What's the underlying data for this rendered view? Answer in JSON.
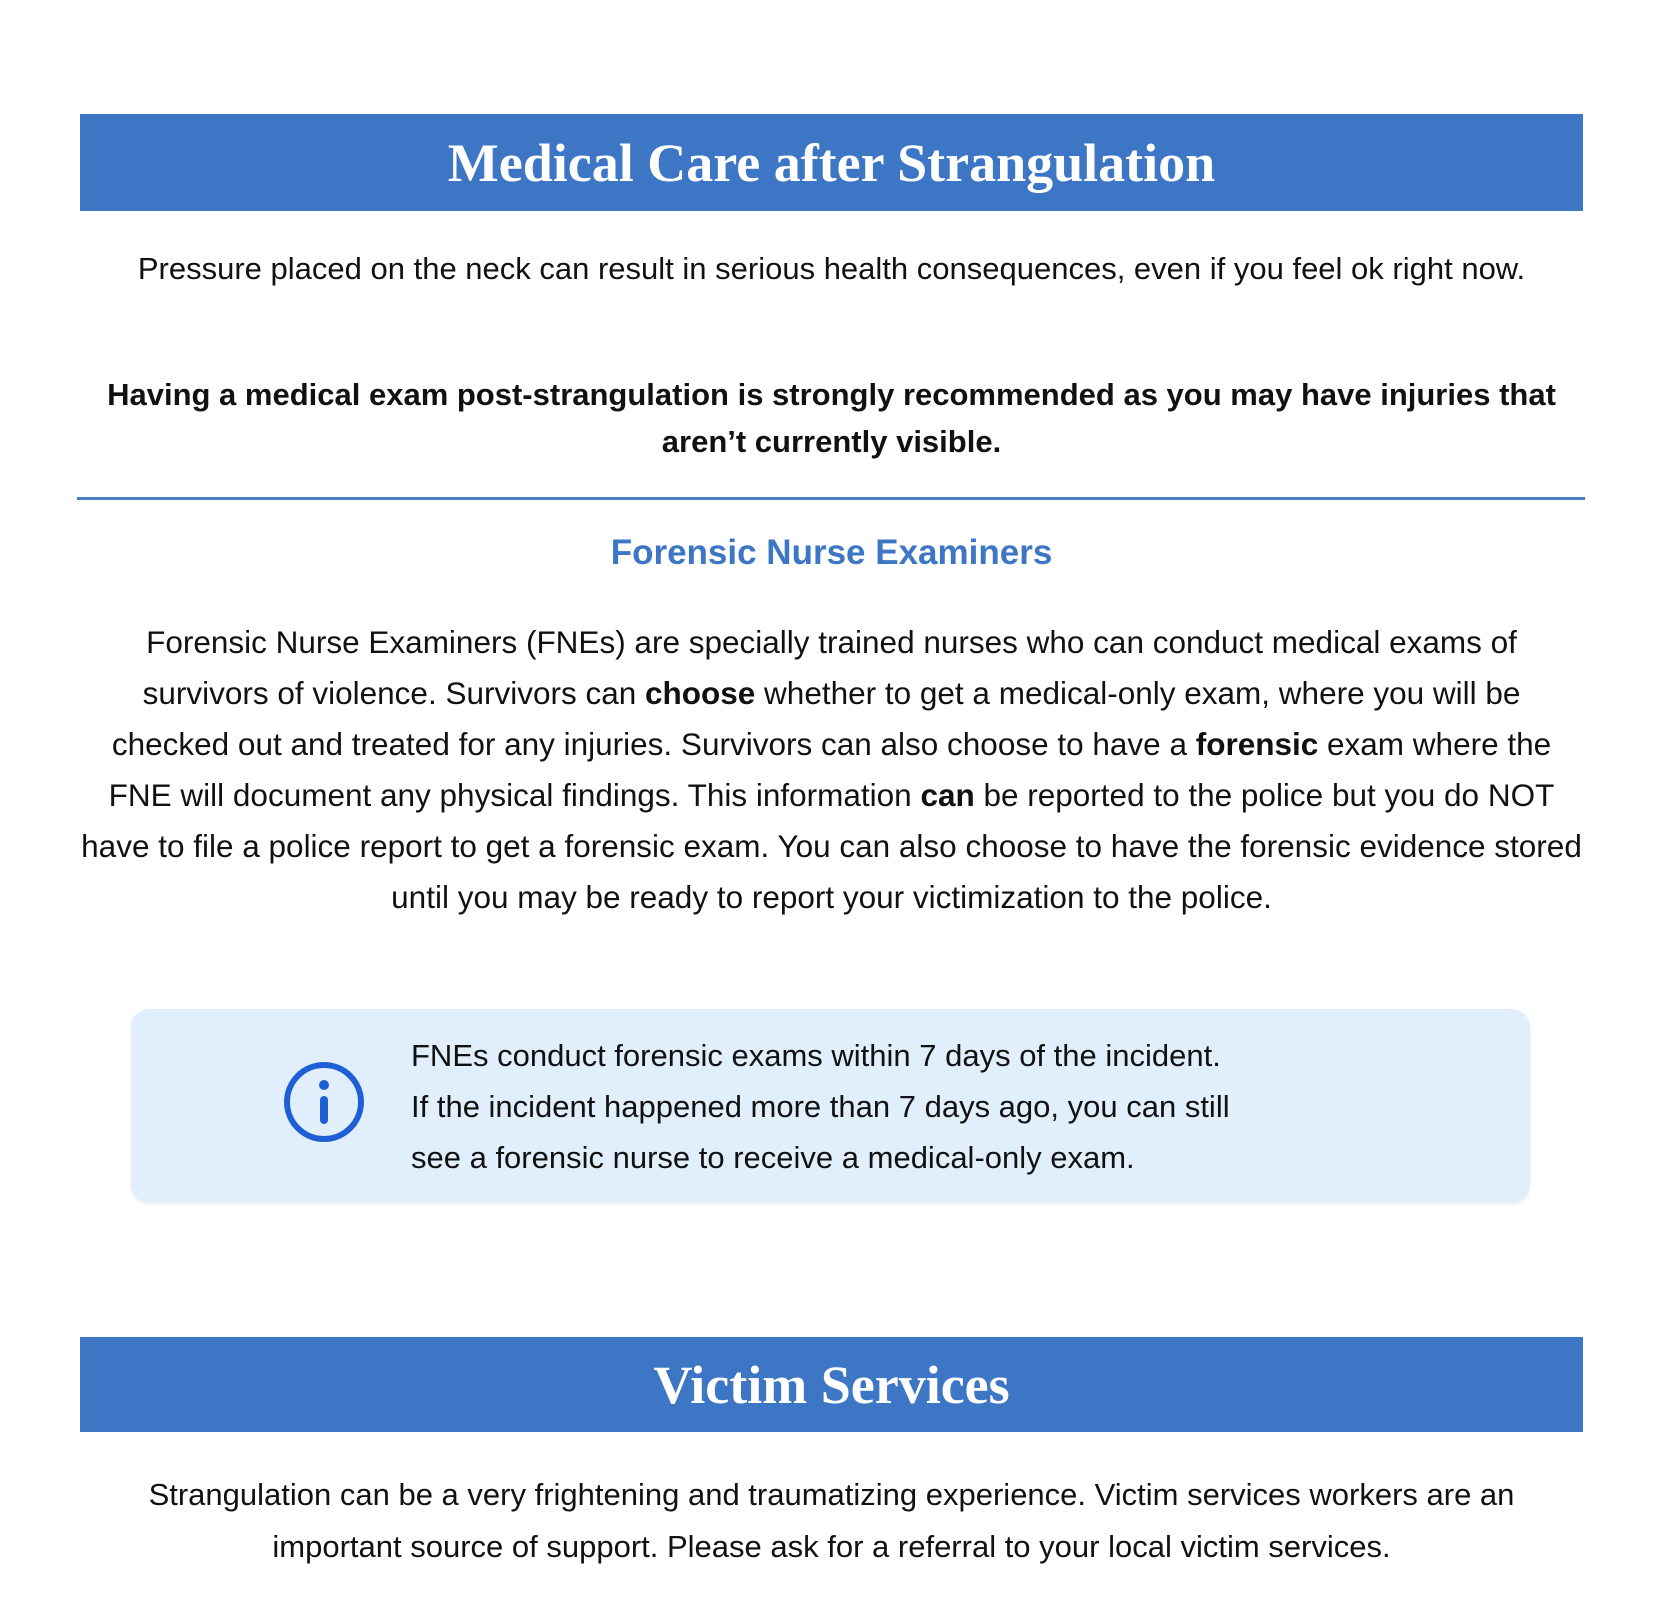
{
  "medical_care": {
    "title": "Medical Care after Strangulation",
    "intro": "Pressure placed on the neck can result in serious health consequences, even if you feel ok right now.",
    "recommendation": "Having a medical exam post-strangulation is strongly recommended as you may have injuries that aren’t currently visible."
  },
  "fne": {
    "heading": "Forensic Nurse Examiners",
    "body": [
      {
        "text": "Forensic Nurse Examiners (FNEs) are specially trained nurses who can conduct medical exams of survivors of violence. Survivors can ",
        "bold": false
      },
      {
        "text": "choose",
        "bold": true
      },
      {
        "text": " whether to get a medical-only exam, where you will be checked out and treated for any injuries. Survivors can also choose to have a ",
        "bold": false
      },
      {
        "text": "forensic",
        "bold": true
      },
      {
        "text": " exam where the FNE will document any physical findings. This information ",
        "bold": false
      },
      {
        "text": "can",
        "bold": true
      },
      {
        "text": " be reported to the police but you do NOT have to file a police report to get a forensic exam. You can also choose to have the forensic evidence stored until you may be ready to report your victimization to the police.",
        "bold": false
      }
    ],
    "info_box": {
      "icon": "info-circle-icon",
      "lines": [
        "FNEs conduct forensic exams within 7 days of the incident.",
        "If the incident happened more than 7 days ago, you can still",
        "see a forensic nurse to receive a medical-only exam."
      ]
    }
  },
  "victim_services": {
    "title": "Victim Services",
    "body": "Strangulation can be a very frightening and traumatizing experience. Victim services workers are an important source of support. Please ask for a referral to your local victim services."
  },
  "colors": {
    "banner": "#3d76c4",
    "info_bg": "#e1eefb",
    "icon": "#1f5fd6"
  }
}
